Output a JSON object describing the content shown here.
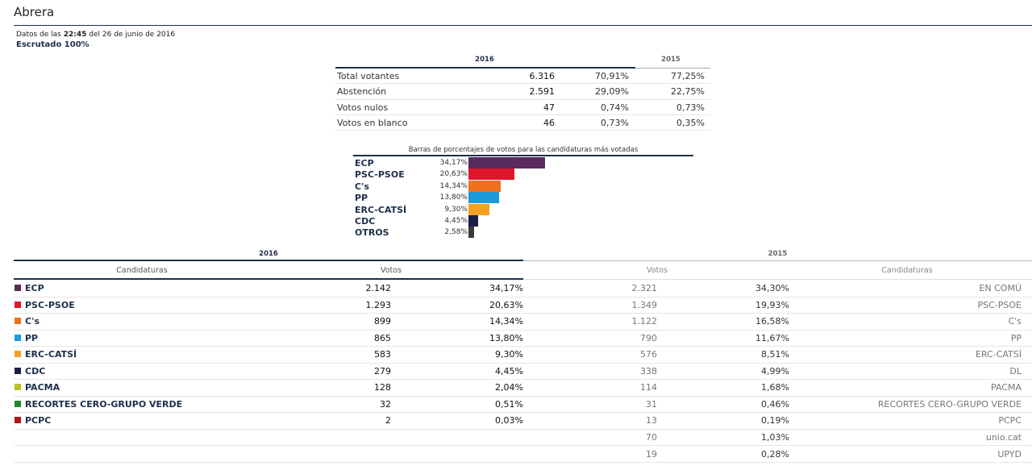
{
  "header": {
    "town": "Abrera",
    "data_prefix": "Datos de las",
    "time": "22:45",
    "data_suffix": "del 26 de junio de 2016",
    "scrutiny": "Escrutado 100%"
  },
  "summary": {
    "year_2016": "2016",
    "year_2015": "2015",
    "rows": [
      {
        "label": "Total votantes",
        "n": "6.316",
        "p": "70,91%",
        "p15": "77,25%"
      },
      {
        "label": "Abstención",
        "n": "2.591",
        "p": "29,09%",
        "p15": "22,75%"
      },
      {
        "label": "Votos nulos",
        "n": "47",
        "p": "0,74%",
        "p15": "0,73%"
      },
      {
        "label": "Votos en blanco",
        "n": "46",
        "p": "0,73%",
        "p15": "0,35%"
      }
    ]
  },
  "chart_data": {
    "type": "bar",
    "title": "Barras de porcentajes de votos para las candidaturas más votadas",
    "categories": [
      "ECP",
      "PSC-PSOE",
      "C's",
      "PP",
      "ERC-CATSÍ",
      "CDC",
      "OTROS"
    ],
    "values": [
      34.17,
      20.63,
      14.34,
      13.8,
      9.3,
      4.45,
      2.58
    ],
    "value_labels": [
      "34,17%",
      "20,63%",
      "14,34%",
      "13,80%",
      "9,30%",
      "4,45%",
      "2,58%"
    ],
    "colors": [
      "#5b2a5e",
      "#e0152b",
      "#f0701e",
      "#1a9ad8",
      "#f4a025",
      "#1b1f45",
      "#3a3a3a"
    ],
    "ylim": [
      0,
      100
    ]
  },
  "results": {
    "year_2016": "2016",
    "year_2015": "2015",
    "h_cand": "Candidaturas",
    "h_votos": "Votos",
    "rows": [
      {
        "name": "ECP",
        "color": "#5b2a5e",
        "v16": "2.142",
        "p16": "34,17%",
        "v15": "2.321",
        "p15": "34,30%",
        "c15": "EN COMÚ"
      },
      {
        "name": "PSC-PSOE",
        "color": "#e0152b",
        "v16": "1.293",
        "p16": "20,63%",
        "v15": "1.349",
        "p15": "19,93%",
        "c15": "PSC-PSOE"
      },
      {
        "name": "C's",
        "color": "#f0701e",
        "v16": "899",
        "p16": "14,34%",
        "v15": "1.122",
        "p15": "16,58%",
        "c15": "C's"
      },
      {
        "name": "PP",
        "color": "#1a9ad8",
        "v16": "865",
        "p16": "13,80%",
        "v15": "790",
        "p15": "11,67%",
        "c15": "PP"
      },
      {
        "name": "ERC-CATSÍ",
        "color": "#f4a025",
        "v16": "583",
        "p16": "9,30%",
        "v15": "576",
        "p15": "8,51%",
        "c15": "ERC-CATSÍ"
      },
      {
        "name": "CDC",
        "color": "#1b1f45",
        "v16": "279",
        "p16": "4,45%",
        "v15": "338",
        "p15": "4,99%",
        "c15": "DL"
      },
      {
        "name": "PACMA",
        "color": "#b9c31d",
        "v16": "128",
        "p16": "2,04%",
        "v15": "114",
        "p15": "1,68%",
        "c15": "PACMA"
      },
      {
        "name": "RECORTES CERO-GRUPO VERDE",
        "color": "#1e8a2c",
        "v16": "32",
        "p16": "0,51%",
        "v15": "31",
        "p15": "0,46%",
        "c15": "RECORTES CERO-GRUPO VERDE"
      },
      {
        "name": "PCPC",
        "color": "#b3121a",
        "v16": "2",
        "p16": "0,03%",
        "v15": "13",
        "p15": "0,19%",
        "c15": "PCPC"
      },
      {
        "name": "",
        "color": "",
        "v16": "",
        "p16": "",
        "v15": "70",
        "p15": "1,03%",
        "c15": "unio.cat"
      },
      {
        "name": "",
        "color": "",
        "v16": "",
        "p16": "",
        "v15": "19",
        "p15": "0,28%",
        "c15": "UPYD"
      }
    ]
  }
}
